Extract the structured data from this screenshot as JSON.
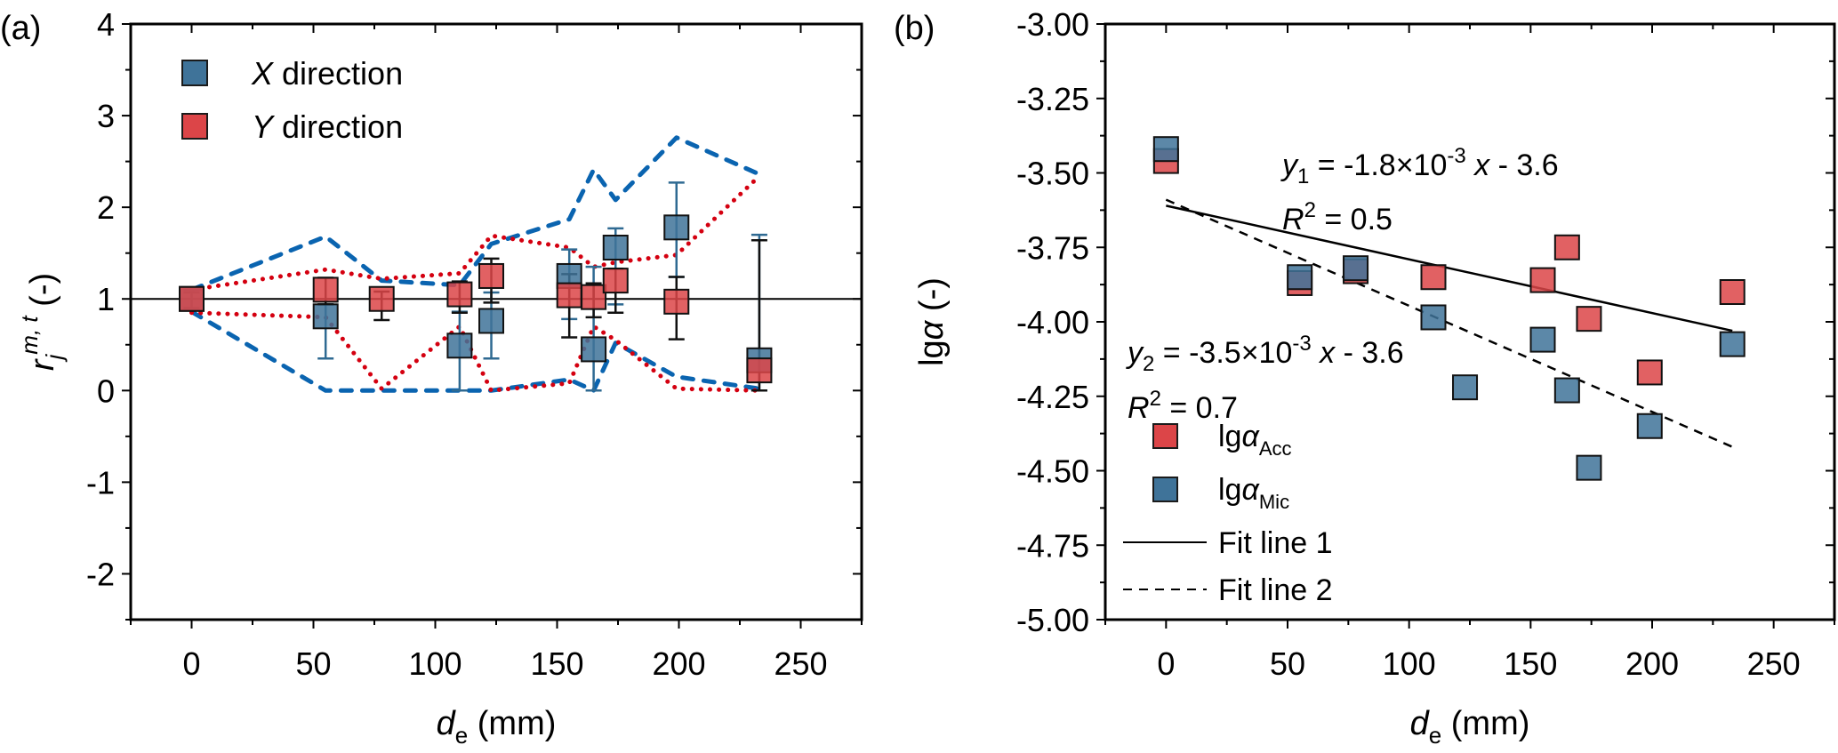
{
  "chart_data": [
    {
      "panel_label": "(a)",
      "type": "scatter",
      "subtype": "box-marker with error bars and envelope lines",
      "xlabel": {
        "main": "d",
        "sub": "e",
        "unit": " (mm)"
      },
      "ylabel": {
        "main": "r",
        "sub": "j",
        "sup": "m, t",
        "unit": " (-)"
      },
      "xlim": [
        -25,
        275
      ],
      "ylim": [
        -2.5,
        4
      ],
      "xticks": [
        0,
        50,
        100,
        150,
        200,
        250
      ],
      "xtick_labels": [
        "0",
        "50",
        "100",
        "150",
        "200",
        "250"
      ],
      "yticks": [
        -2,
        -1,
        0,
        1,
        2,
        3,
        4
      ],
      "ytick_labels": [
        "-2",
        "-1",
        "0",
        "1",
        "2",
        "3",
        "4"
      ],
      "reference_line": 1,
      "grid": false,
      "legend": {
        "placement": "top-left",
        "entries": [
          {
            "italic": "X",
            "text": " direction",
            "series": "X"
          },
          {
            "italic": "Y",
            "text": " direction",
            "series": "Y"
          }
        ]
      },
      "series": [
        {
          "name": "X direction",
          "color": "#3f7399",
          "x": [
            0,
            55,
            110,
            123,
            155,
            165,
            174,
            199,
            233
          ],
          "y": [
            1.0,
            0.81,
            0.49,
            0.76,
            1.25,
            0.45,
            1.56,
            1.78,
            0.33
          ],
          "err_low": [
            0.9,
            0.35,
            0.0,
            0.35,
            0.78,
            0.0,
            0.94,
            1.24,
            0.0
          ],
          "err_high": [
            1.1,
            0.94,
            0.86,
            1.07,
            1.54,
            1.35,
            1.77,
            2.27,
            1.7
          ]
        },
        {
          "name": "Y direction",
          "color": "#dc4548",
          "x": [
            0,
            55,
            78,
            110,
            123,
            155,
            165,
            174,
            199,
            233
          ],
          "y": [
            1.0,
            1.1,
            1.0,
            1.05,
            1.25,
            1.04,
            1.02,
            1.2,
            0.97,
            0.22
          ],
          "err_low": [
            0.9,
            0.94,
            0.77,
            0.85,
            0.96,
            0.58,
            0.8,
            0.85,
            0.56,
            0.0
          ],
          "err_high": [
            1.07,
            1.23,
            1.08,
            1.19,
            1.44,
            1.27,
            1.17,
            1.33,
            1.24,
            1.64
          ]
        }
      ],
      "envelopes": [
        {
          "name": "X upper bound",
          "style": "dashed",
          "color": "#0a64b0",
          "x": [
            0,
            55,
            78,
            110,
            123,
            155,
            165,
            174,
            199,
            233
          ],
          "y": [
            1.1,
            1.68,
            1.2,
            1.15,
            1.6,
            1.87,
            2.41,
            2.08,
            2.76,
            2.36
          ]
        },
        {
          "name": "X lower bound",
          "style": "dashed",
          "color": "#0a64b0",
          "x": [
            0,
            55,
            78,
            110,
            123,
            155,
            165,
            174,
            199,
            233
          ],
          "y": [
            0.86,
            0.0,
            0.0,
            0.0,
            0.0,
            0.12,
            0.0,
            0.52,
            0.15,
            0.02
          ]
        },
        {
          "name": "Y upper bound",
          "style": "dotted",
          "color": "#d40010",
          "x": [
            0,
            55,
            78,
            110,
            123,
            155,
            165,
            174,
            199,
            233
          ],
          "y": [
            1.1,
            1.32,
            1.22,
            1.28,
            1.69,
            1.56,
            1.35,
            1.4,
            1.48,
            2.34
          ]
        },
        {
          "name": "Y lower bound",
          "style": "dotted",
          "color": "#d40010",
          "x": [
            0,
            55,
            78,
            110,
            123,
            155,
            165,
            174,
            199,
            233
          ],
          "y": [
            0.85,
            0.8,
            0.02,
            0.7,
            0.0,
            0.08,
            0.7,
            0.55,
            0.02,
            0.0
          ]
        }
      ]
    },
    {
      "panel_label": "(b)",
      "type": "scatter",
      "xlabel": {
        "main": "d",
        "sub": "e",
        "unit": " (mm)"
      },
      "ylabel": {
        "main": "lg",
        "italic": "α",
        "unit": " (-)"
      },
      "xlim": [
        -25,
        275
      ],
      "ylim": [
        -5.0,
        -3.0
      ],
      "xticks": [
        0,
        50,
        100,
        150,
        200,
        250
      ],
      "xtick_labels": [
        "0",
        "50",
        "100",
        "150",
        "200",
        "250"
      ],
      "yticks": [
        -5.0,
        -4.75,
        -4.5,
        -4.25,
        -4.0,
        -3.75,
        -3.5,
        -3.25,
        -3.0
      ],
      "ytick_labels": [
        "-5.00",
        "-4.75",
        "-4.50",
        "-4.25",
        "-4.00",
        "-3.75",
        "-3.50",
        "-3.25",
        "-3.00"
      ],
      "grid": false,
      "series": [
        {
          "name": "lgαAcc",
          "label_main": "lg",
          "label_greek": "α",
          "label_sub": "Acc",
          "color": "#dc4548",
          "x": [
            0,
            55,
            78,
            110,
            155,
            165,
            174,
            199,
            233
          ],
          "y": [
            -3.46,
            -3.87,
            -3.83,
            -3.85,
            -3.86,
            -3.75,
            -3.99,
            -4.17,
            -3.9
          ]
        },
        {
          "name": "lgαMic",
          "label_main": "lg",
          "label_greek": "α",
          "label_sub": "Mic",
          "color": "#3f7399",
          "x": [
            0,
            55,
            78,
            110,
            123,
            155,
            165,
            174,
            199,
            233
          ],
          "y": [
            -3.42,
            -3.85,
            -3.82,
            -3.985,
            -4.22,
            -4.06,
            -4.23,
            -4.49,
            -4.35,
            -4.075
          ]
        }
      ],
      "fit_lines": [
        {
          "name": "Fit line 1",
          "style": "solid",
          "slope": -0.0018,
          "intercept": -3.6,
          "x_range": [
            0,
            233
          ],
          "y_at_start": -3.61,
          "y_at_end": -4.03
        },
        {
          "name": "Fit line 2",
          "style": "dashed",
          "slope": -0.0035,
          "intercept": -3.6,
          "x_range": [
            0,
            233
          ],
          "y_at_start": -3.59,
          "y_at_end": -4.42
        }
      ],
      "annotations": [
        {
          "id": "eq1",
          "var": "y",
          "var_sub": "1",
          "text_a": " = -1.8×10",
          "exp": "-3",
          "text_b": " x",
          "text_c": " - 3.6"
        },
        {
          "id": "r2_1",
          "var": "R",
          "sup": "2",
          "text": " = 0.5"
        },
        {
          "id": "eq2",
          "var": "y",
          "var_sub": "2",
          "text_a": " = -3.5×10",
          "exp": "-3",
          "text_b": " x",
          "text_c": " - 3.6"
        },
        {
          "id": "r2_2",
          "var": "R",
          "sup": "2",
          "text": " = 0.7"
        }
      ],
      "legend": {
        "placement": "bottom-left",
        "entries": [
          {
            "type": "marker",
            "series": 0,
            "main": "lg",
            "greek": "α",
            "sub": "Acc"
          },
          {
            "type": "marker",
            "series": 1,
            "main": "lg",
            "greek": "α",
            "sub": "Mic"
          },
          {
            "type": "line",
            "style": "solid",
            "text": "Fit line 1"
          },
          {
            "type": "line",
            "style": "dashed",
            "text": "Fit line 2"
          }
        ]
      }
    }
  ]
}
